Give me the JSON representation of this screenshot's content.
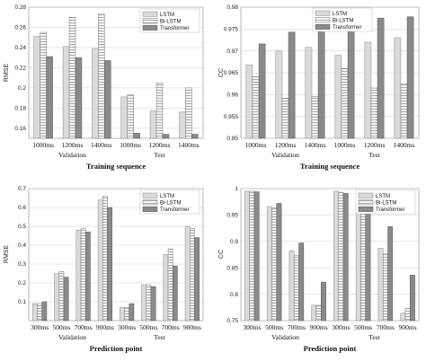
{
  "patterns": {
    "LSTM": {
      "fill": "#dadada",
      "stroke": "#888888"
    },
    "Bi-LSTM": {
      "fill": "#f2f2f2",
      "stroke": "#777777",
      "hatch": "#9a9a9a"
    },
    "Transformer": {
      "fill": "#8a8a8a",
      "stroke": "#555555"
    }
  },
  "chart_data": [
    {
      "type": "bar",
      "groups": [
        "Validation",
        "Test"
      ],
      "categories": [
        "1000ms",
        "1200ms",
        "1400ms",
        "1000ms",
        "1200ms",
        "1400ms"
      ],
      "xlabel": "Training sequence",
      "ylabel": "RMSE",
      "ylim": [
        0.15,
        0.28
      ],
      "yticks": [
        "0.16",
        "0.18",
        "0.2",
        "0.22",
        "0.24",
        "0.26",
        "0.28"
      ],
      "grid": true,
      "legend": "top-right",
      "series": [
        {
          "name": "LSTM",
          "values": [
            0.251,
            0.241,
            0.239,
            0.191,
            0.177,
            0.176
          ]
        },
        {
          "name": "Bi-LSTM",
          "values": [
            0.255,
            0.27,
            0.273,
            0.193,
            0.205,
            0.2
          ]
        },
        {
          "name": "Transformer",
          "values": [
            0.231,
            0.23,
            0.227,
            0.155,
            0.154,
            0.154
          ]
        }
      ]
    },
    {
      "type": "bar",
      "groups": [
        "Validation",
        "Test"
      ],
      "categories": [
        "1000ms",
        "1200ms",
        "1400ms",
        "1000ms",
        "1200ms",
        "1400ms"
      ],
      "xlabel": "Training sequence",
      "ylabel": "CC",
      "ylim": [
        0.95,
        0.98
      ],
      "yticks": [
        "0.95",
        "0.955",
        "0.96",
        "0.965",
        "0.97",
        "0.975",
        "0.98"
      ],
      "grid": true,
      "legend": "top-left",
      "series": [
        {
          "name": "LSTM",
          "values": [
            0.9668,
            0.97,
            0.9708,
            0.969,
            0.972,
            0.973
          ]
        },
        {
          "name": "Bi-LSTM",
          "values": [
            0.9641,
            0.9592,
            0.9596,
            0.966,
            0.9615,
            0.9625
          ]
        },
        {
          "name": "Transformer",
          "values": [
            0.9716,
            0.9743,
            0.9753,
            0.9766,
            0.9775,
            0.9778
          ]
        }
      ]
    },
    {
      "type": "bar",
      "groups": [
        "Validation",
        "Test"
      ],
      "categories": [
        "300ms",
        "500ms",
        "700ms",
        "900ms",
        "300ms",
        "500ms",
        "700ms",
        "900ms"
      ],
      "xlabel": "Prediction point",
      "ylabel": "RMSE",
      "ylim": [
        0,
        0.7
      ],
      "yticks": [
        "0.1",
        "0.2",
        "0.3",
        "0.4",
        "0.5",
        "0.6",
        "0.7"
      ],
      "grid": true,
      "legend": "top-right",
      "series": [
        {
          "name": "LSTM",
          "values": [
            0.09,
            0.25,
            0.48,
            0.64,
            0.07,
            0.19,
            0.35,
            0.5
          ]
        },
        {
          "name": "Bi-LSTM",
          "values": [
            0.09,
            0.26,
            0.49,
            0.66,
            0.07,
            0.19,
            0.38,
            0.49
          ]
        },
        {
          "name": "Transformer",
          "values": [
            0.1,
            0.23,
            0.47,
            0.6,
            0.09,
            0.18,
            0.29,
            0.44
          ]
        }
      ]
    },
    {
      "type": "bar",
      "groups": [
        "Validation",
        "Test"
      ],
      "categories": [
        "300ms",
        "500ms",
        "700ms",
        "900ms",
        "300ms",
        "500ms",
        "700ms",
        "900ms"
      ],
      "xlabel": "Prediction point",
      "ylabel": "CC",
      "ylim": [
        0.75,
        1.0
      ],
      "yticks": [
        "0.75",
        "0.8",
        "0.85",
        "0.9",
        "0.95",
        "1"
      ],
      "grid": true,
      "legend": "top-right",
      "series": [
        {
          "name": "LSTM",
          "values": [
            0.995,
            0.966,
            0.882,
            0.779,
            0.995,
            0.968,
            0.887,
            0.764
          ]
        },
        {
          "name": "Bi-LSTM",
          "values": [
            0.995,
            0.963,
            0.873,
            0.779,
            0.993,
            0.965,
            0.876,
            0.773
          ]
        },
        {
          "name": "Transformer",
          "values": [
            0.994,
            0.972,
            0.897,
            0.823,
            0.991,
            0.977,
            0.928,
            0.836
          ]
        }
      ]
    }
  ]
}
